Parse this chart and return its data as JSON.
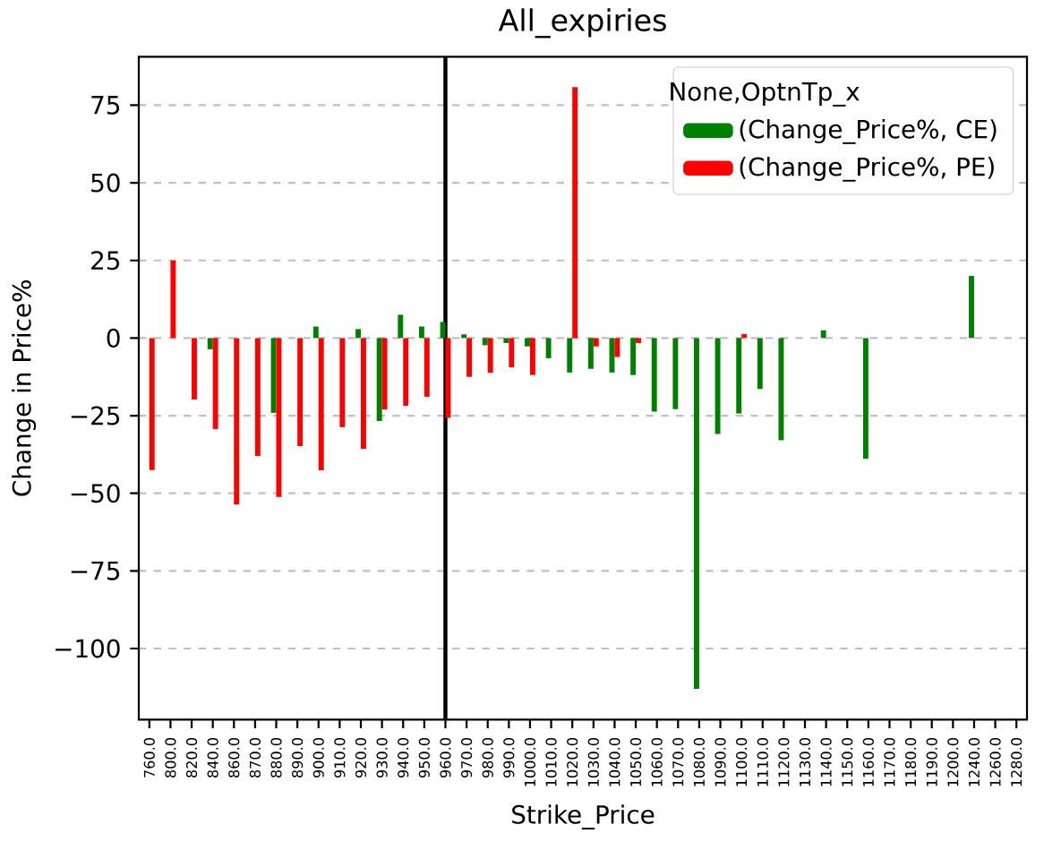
{
  "chart_data": {
    "type": "bar",
    "title": "All_expiries",
    "xlabel": "Strike_Price",
    "ylabel": "Change in Price%",
    "legend_title": "None,OptnTp_x",
    "categories": [
      "760.0",
      "800.0",
      "820.0",
      "840.0",
      "860.0",
      "870.0",
      "880.0",
      "890.0",
      "900.0",
      "910.0",
      "920.0",
      "930.0",
      "940.0",
      "950.0",
      "960.0",
      "970.0",
      "980.0",
      "990.0",
      "1000.0",
      "1010.0",
      "1020.0",
      "1030.0",
      "1040.0",
      "1050.0",
      "1060.0",
      "1070.0",
      "1080.0",
      "1090.0",
      "1100.0",
      "1110.0",
      "1120.0",
      "1130.0",
      "1140.0",
      "1150.0",
      "1160.0",
      "1170.0",
      "1180.0",
      "1190.0",
      "1200.0",
      "1240.0",
      "1260.0",
      "1280.0"
    ],
    "series": [
      {
        "name": "(Change_Price%, CE)",
        "color": "#008000",
        "values": [
          null,
          null,
          null,
          -3.6,
          null,
          null,
          -24.1,
          null,
          3.7,
          null,
          2.9,
          -26.7,
          7.5,
          3.7,
          5.2,
          1.2,
          -2.3,
          -1.6,
          -2.7,
          -6.5,
          -11.1,
          -9.9,
          -11.1,
          -11.9,
          -23.7,
          -22.9,
          -113,
          -30.9,
          -24.3,
          -16.4,
          -32.9,
          null,
          2.5,
          null,
          -38.9,
          null,
          null,
          null,
          null,
          20,
          null,
          null
        ]
      },
      {
        "name": "(Change_Price%, PE)",
        "color": "#ff0000",
        "values": [
          -42.5,
          25,
          -19.8,
          -29.3,
          -53.6,
          -38,
          -51.2,
          -34.8,
          -42.6,
          -28.7,
          -35.7,
          -23,
          -21.8,
          -18.9,
          -25.7,
          -12.5,
          -11.2,
          -9.4,
          -11.9,
          null,
          80.8,
          -2.7,
          -6.1,
          -1.6,
          null,
          null,
          null,
          null,
          1.3,
          null,
          null,
          null,
          null,
          null,
          null,
          null,
          null,
          null,
          null,
          null,
          null,
          null
        ]
      }
    ],
    "ylim": [
      -122.9,
      90.6
    ],
    "yticks": [
      {
        "value": -100,
        "label": "−100"
      },
      {
        "value": -75,
        "label": "−75"
      },
      {
        "value": -50,
        "label": "−50"
      },
      {
        "value": -25,
        "label": "−25"
      },
      0,
      25,
      50,
      75
    ],
    "grid": "y",
    "legend": "top right",
    "ref_lines": [
      {
        "axis": "x",
        "value": "960.0",
        "color": "#000000"
      }
    ]
  }
}
